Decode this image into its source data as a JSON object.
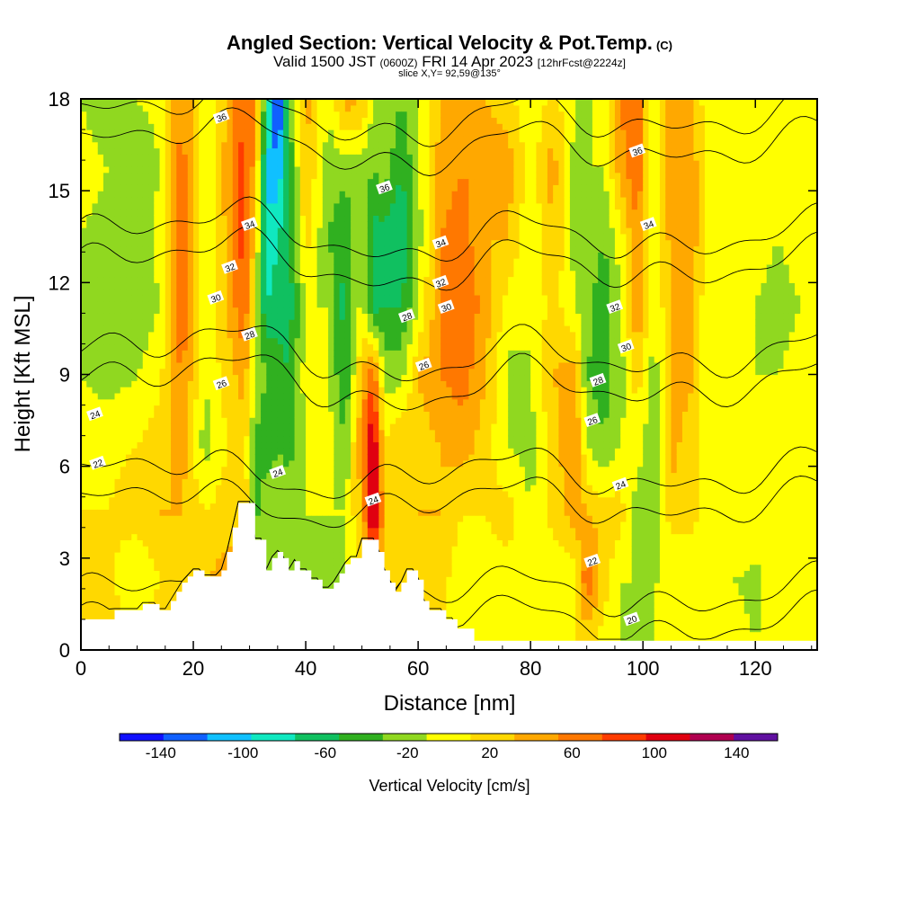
{
  "title": {
    "main": "Angled Section: Vertical Velocity & Pot.Temp.",
    "main_tag": "(C)",
    "valid_prefix": "Valid 1500 JST",
    "valid_utc": "(0600Z)",
    "valid_date": "FRI 14 Apr 2023",
    "forecast": "[12hrFcst@2224z]",
    "slice": "slice X,Y= 92,59@135°"
  },
  "chart_data": {
    "type": "heatmap",
    "xlabel": "Distance [nm]",
    "ylabel": "Height [Kft MSL]",
    "xlim": [
      0,
      131
    ],
    "ylim": [
      0,
      18
    ],
    "x_ticks": [
      0,
      20,
      40,
      60,
      80,
      100,
      120
    ],
    "y_ticks": [
      0,
      3,
      6,
      9,
      12,
      15,
      18
    ],
    "colorbar": {
      "label": "Vertical Velocity [cm/s]",
      "ticks": [
        "-140",
        "-100",
        "-60",
        "-20",
        "20",
        "60",
        "100",
        "140"
      ],
      "range": [
        -160,
        160
      ],
      "step": 20,
      "colors": [
        "#1010ff",
        "#1060ff",
        "#10c0ff",
        "#10e8c0",
        "#10c060",
        "#30b020",
        "#90d820",
        "#ffff00",
        "#ffd800",
        "#ffa800",
        "#ff7800",
        "#ff3c00",
        "#e00010",
        "#b00050",
        "#6010a0"
      ]
    },
    "terrain_kft": [
      [
        0,
        1.0
      ],
      [
        6,
        1.0
      ],
      [
        6,
        1.3
      ],
      [
        11,
        1.3
      ],
      [
        11,
        1.5
      ],
      [
        14,
        1.5
      ],
      [
        14,
        1.3
      ],
      [
        16,
        1.3
      ],
      [
        16,
        1.6
      ],
      [
        17,
        1.6
      ],
      [
        17,
        1.9
      ],
      [
        18,
        1.9
      ],
      [
        18,
        2.2
      ],
      [
        19,
        2.2
      ],
      [
        19,
        2.4
      ],
      [
        20,
        2.4
      ],
      [
        20,
        2.6
      ],
      [
        22,
        2.6
      ],
      [
        22,
        2.4
      ],
      [
        25,
        2.4
      ],
      [
        25,
        2.6
      ],
      [
        26,
        2.6
      ],
      [
        26,
        3.2
      ],
      [
        27,
        3.2
      ],
      [
        27,
        4.0
      ],
      [
        28,
        4.0
      ],
      [
        28,
        4.8
      ],
      [
        31,
        4.8
      ],
      [
        31,
        3.6
      ],
      [
        33,
        3.6
      ],
      [
        33,
        2.6
      ],
      [
        34,
        2.6
      ],
      [
        34,
        3.0
      ],
      [
        35,
        3.0
      ],
      [
        35,
        3.2
      ],
      [
        36,
        3.2
      ],
      [
        36,
        3.0
      ],
      [
        37,
        3.0
      ],
      [
        37,
        2.6
      ],
      [
        38,
        2.6
      ],
      [
        38,
        2.9
      ],
      [
        39,
        2.9
      ],
      [
        39,
        2.6
      ],
      [
        41,
        2.6
      ],
      [
        41,
        2.3
      ],
      [
        43,
        2.3
      ],
      [
        43,
        2.0
      ],
      [
        45,
        2.0
      ],
      [
        45,
        2.2
      ],
      [
        46,
        2.2
      ],
      [
        46,
        2.5
      ],
      [
        47,
        2.5
      ],
      [
        47,
        2.8
      ],
      [
        48,
        2.8
      ],
      [
        48,
        3.0
      ],
      [
        50,
        3.0
      ],
      [
        50,
        3.6
      ],
      [
        53,
        3.6
      ],
      [
        53,
        3.2
      ],
      [
        54,
        3.2
      ],
      [
        54,
        2.6
      ],
      [
        55,
        2.6
      ],
      [
        55,
        2.2
      ],
      [
        56,
        2.2
      ],
      [
        56,
        1.9
      ],
      [
        57,
        1.9
      ],
      [
        57,
        2.2
      ],
      [
        58,
        2.2
      ],
      [
        58,
        2.6
      ],
      [
        60,
        2.6
      ],
      [
        60,
        2.3
      ],
      [
        61,
        2.3
      ],
      [
        61,
        1.6
      ],
      [
        62,
        1.6
      ],
      [
        62,
        1.3
      ],
      [
        65,
        1.3
      ],
      [
        65,
        1.0
      ],
      [
        67,
        1.0
      ],
      [
        67,
        0.7
      ],
      [
        70,
        0.7
      ],
      [
        70,
        0.3
      ],
      [
        131,
        0.3
      ]
    ],
    "theta_contours_c": [
      20,
      22,
      24,
      26,
      28,
      30,
      32,
      34,
      36
    ],
    "contour_labels": [
      {
        "v": "36",
        "x": 25,
        "y": 17.4
      },
      {
        "v": "34",
        "x": 30,
        "y": 13.9
      },
      {
        "v": "32",
        "x": 26.5,
        "y": 12.5
      },
      {
        "v": "30",
        "x": 24,
        "y": 11.5
      },
      {
        "v": "28",
        "x": 30,
        "y": 10.3
      },
      {
        "v": "26",
        "x": 25,
        "y": 8.7
      },
      {
        "v": "24",
        "x": 2.5,
        "y": 7.7
      },
      {
        "v": "22",
        "x": 3,
        "y": 6.1
      },
      {
        "v": "24",
        "x": 35,
        "y": 5.8
      },
      {
        "v": "36",
        "x": 54,
        "y": 15.1
      },
      {
        "v": "34",
        "x": 64,
        "y": 13.3
      },
      {
        "v": "32",
        "x": 64,
        "y": 12.0
      },
      {
        "v": "30",
        "x": 65,
        "y": 11.2
      },
      {
        "v": "28",
        "x": 58,
        "y": 10.9
      },
      {
        "v": "26",
        "x": 61,
        "y": 9.3
      },
      {
        "v": "24",
        "x": 52,
        "y": 4.9
      },
      {
        "v": "36",
        "x": 99,
        "y": 16.3
      },
      {
        "v": "34",
        "x": 101,
        "y": 13.9
      },
      {
        "v": "32",
        "x": 95,
        "y": 11.2
      },
      {
        "v": "30",
        "x": 97,
        "y": 9.9
      },
      {
        "v": "28",
        "x": 92,
        "y": 8.8
      },
      {
        "v": "26",
        "x": 91,
        "y": 7.5
      },
      {
        "v": "24",
        "x": 96,
        "y": 5.4
      },
      {
        "v": "22",
        "x": 91,
        "y": 2.9
      },
      {
        "v": "20",
        "x": 98,
        "y": 1.0
      }
    ],
    "w_field": [
      {
        "x": 0,
        "v": [
          0,
          0,
          0,
          -10,
          -20,
          -25,
          -20,
          -15,
          -20
        ]
      },
      {
        "x": 5,
        "v": [
          10,
          5,
          0,
          -5,
          -30,
          -30,
          -25,
          -20,
          -30
        ]
      },
      {
        "x": 10,
        "v": [
          10,
          -20,
          10,
          0,
          -20,
          -35,
          -30,
          -35,
          -20
        ]
      },
      {
        "x": 14,
        "v": [
          20,
          0,
          20,
          10,
          -5,
          -20,
          -15,
          -20,
          -15
        ]
      },
      {
        "x": 18,
        "v": [
          10,
          10,
          20,
          30,
          45,
          55,
          60,
          50,
          45
        ]
      },
      {
        "x": 22,
        "v": [
          20,
          20,
          0,
          -30,
          -20,
          -20,
          -25,
          -25,
          -20
        ]
      },
      {
        "x": 26,
        "v": [
          20,
          30,
          10,
          0,
          10,
          20,
          25,
          30,
          20
        ]
      },
      {
        "x": 29,
        "v": [
          10,
          20,
          20,
          10,
          30,
          60,
          70,
          70,
          60
        ]
      },
      {
        "x": 31,
        "v": [
          0,
          0,
          -50,
          -40,
          -20,
          -10,
          10,
          30,
          40
        ]
      },
      {
        "x": 33,
        "v": [
          0,
          -50,
          -20,
          -60,
          -40,
          -80,
          -100,
          -100,
          -60
        ]
      },
      {
        "x": 35,
        "v": [
          0,
          -20,
          -30,
          -40,
          -50,
          -70,
          -80,
          -120,
          -160
        ]
      },
      {
        "x": 37,
        "v": [
          0,
          -30,
          -25,
          -50,
          -60,
          -70,
          -70,
          -60,
          -40
        ]
      },
      {
        "x": 40,
        "v": [
          0,
          -30,
          -20,
          -20,
          -10,
          -20,
          10,
          20,
          30
        ]
      },
      {
        "x": 44,
        "v": [
          0,
          -30,
          -20,
          -10,
          -20,
          -20,
          -40,
          -30,
          -20
        ]
      },
      {
        "x": 47,
        "v": [
          0,
          -20,
          -20,
          -40,
          -60,
          -70,
          -60,
          -30,
          30
        ]
      },
      {
        "x": 50,
        "v": [
          0,
          0,
          20,
          40,
          20,
          -10,
          -20,
          -30,
          20
        ]
      },
      {
        "x": 52,
        "v": [
          0,
          20,
          120,
          110,
          60,
          -70,
          -70,
          -40,
          -20
        ]
      },
      {
        "x": 54,
        "v": [
          0,
          20,
          20,
          0,
          -30,
          -60,
          -70,
          -30,
          -20
        ]
      },
      {
        "x": 57,
        "v": [
          0,
          0,
          10,
          20,
          -30,
          -60,
          -80,
          -60,
          -40
        ]
      },
      {
        "x": 60,
        "v": [
          0,
          10,
          20,
          10,
          20,
          -20,
          -30,
          -25,
          -20
        ]
      },
      {
        "x": 64,
        "v": [
          0,
          10,
          20,
          20,
          40,
          40,
          40,
          30,
          20
        ]
      },
      {
        "x": 68,
        "v": [
          0,
          -20,
          0,
          30,
          50,
          60,
          50,
          40,
          20
        ]
      },
      {
        "x": 72,
        "v": [
          -10,
          -10,
          0,
          10,
          20,
          30,
          20,
          30,
          20
        ]
      },
      {
        "x": 76,
        "v": [
          -20,
          -10,
          10,
          -20,
          -25,
          -10,
          20,
          30,
          10
        ]
      },
      {
        "x": 80,
        "v": [
          -10,
          -20,
          -20,
          -30,
          -20,
          -20,
          -20,
          -10,
          -20
        ]
      },
      {
        "x": 84,
        "v": [
          -10,
          -20,
          10,
          10,
          20,
          10,
          20,
          30,
          10
        ]
      },
      {
        "x": 88,
        "v": [
          0,
          -10,
          30,
          40,
          30,
          -20,
          -30,
          -30,
          -20
        ]
      },
      {
        "x": 90,
        "v": [
          0,
          60,
          20,
          -20,
          -40,
          -30,
          -20,
          -20,
          -30
        ]
      },
      {
        "x": 93,
        "v": [
          -10,
          10,
          10,
          -40,
          -50,
          -60,
          -40,
          -20,
          -10
        ]
      },
      {
        "x": 96,
        "v": [
          -20,
          -20,
          10,
          -20,
          -30,
          -20,
          -10,
          30,
          40
        ]
      },
      {
        "x": 99,
        "v": [
          -25,
          -20,
          -30,
          -10,
          10,
          40,
          40,
          60,
          60
        ]
      },
      {
        "x": 102,
        "v": [
          -20,
          -20,
          -30,
          -40,
          -30,
          -20,
          -30,
          -20,
          -30
        ]
      },
      {
        "x": 105,
        "v": [
          -10,
          -20,
          10,
          30,
          20,
          20,
          30,
          40,
          30
        ]
      },
      {
        "x": 108,
        "v": [
          -10,
          -20,
          10,
          10,
          30,
          30,
          40,
          40,
          30
        ]
      },
      {
        "x": 112,
        "v": [
          -20,
          -20,
          -10,
          -10,
          -20,
          -20,
          -10,
          -10,
          -20
        ]
      },
      {
        "x": 116,
        "v": [
          -10,
          -20,
          0,
          -10,
          -10,
          0,
          -10,
          -20,
          -10
        ]
      },
      {
        "x": 120,
        "v": [
          -20,
          -25,
          -10,
          -15,
          -20,
          -20,
          -15,
          -20,
          -10
        ]
      },
      {
        "x": 124,
        "v": [
          -10,
          -10,
          -15,
          -20,
          -20,
          -25,
          -20,
          -15,
          -10
        ]
      },
      {
        "x": 128,
        "v": [
          -15,
          -20,
          -10,
          -10,
          -15,
          -20,
          -15,
          -20,
          -10
        ]
      },
      {
        "x": 131,
        "v": [
          -10,
          -15,
          -10,
          -10,
          -10,
          -20,
          -20,
          -20,
          -15
        ]
      }
    ]
  }
}
